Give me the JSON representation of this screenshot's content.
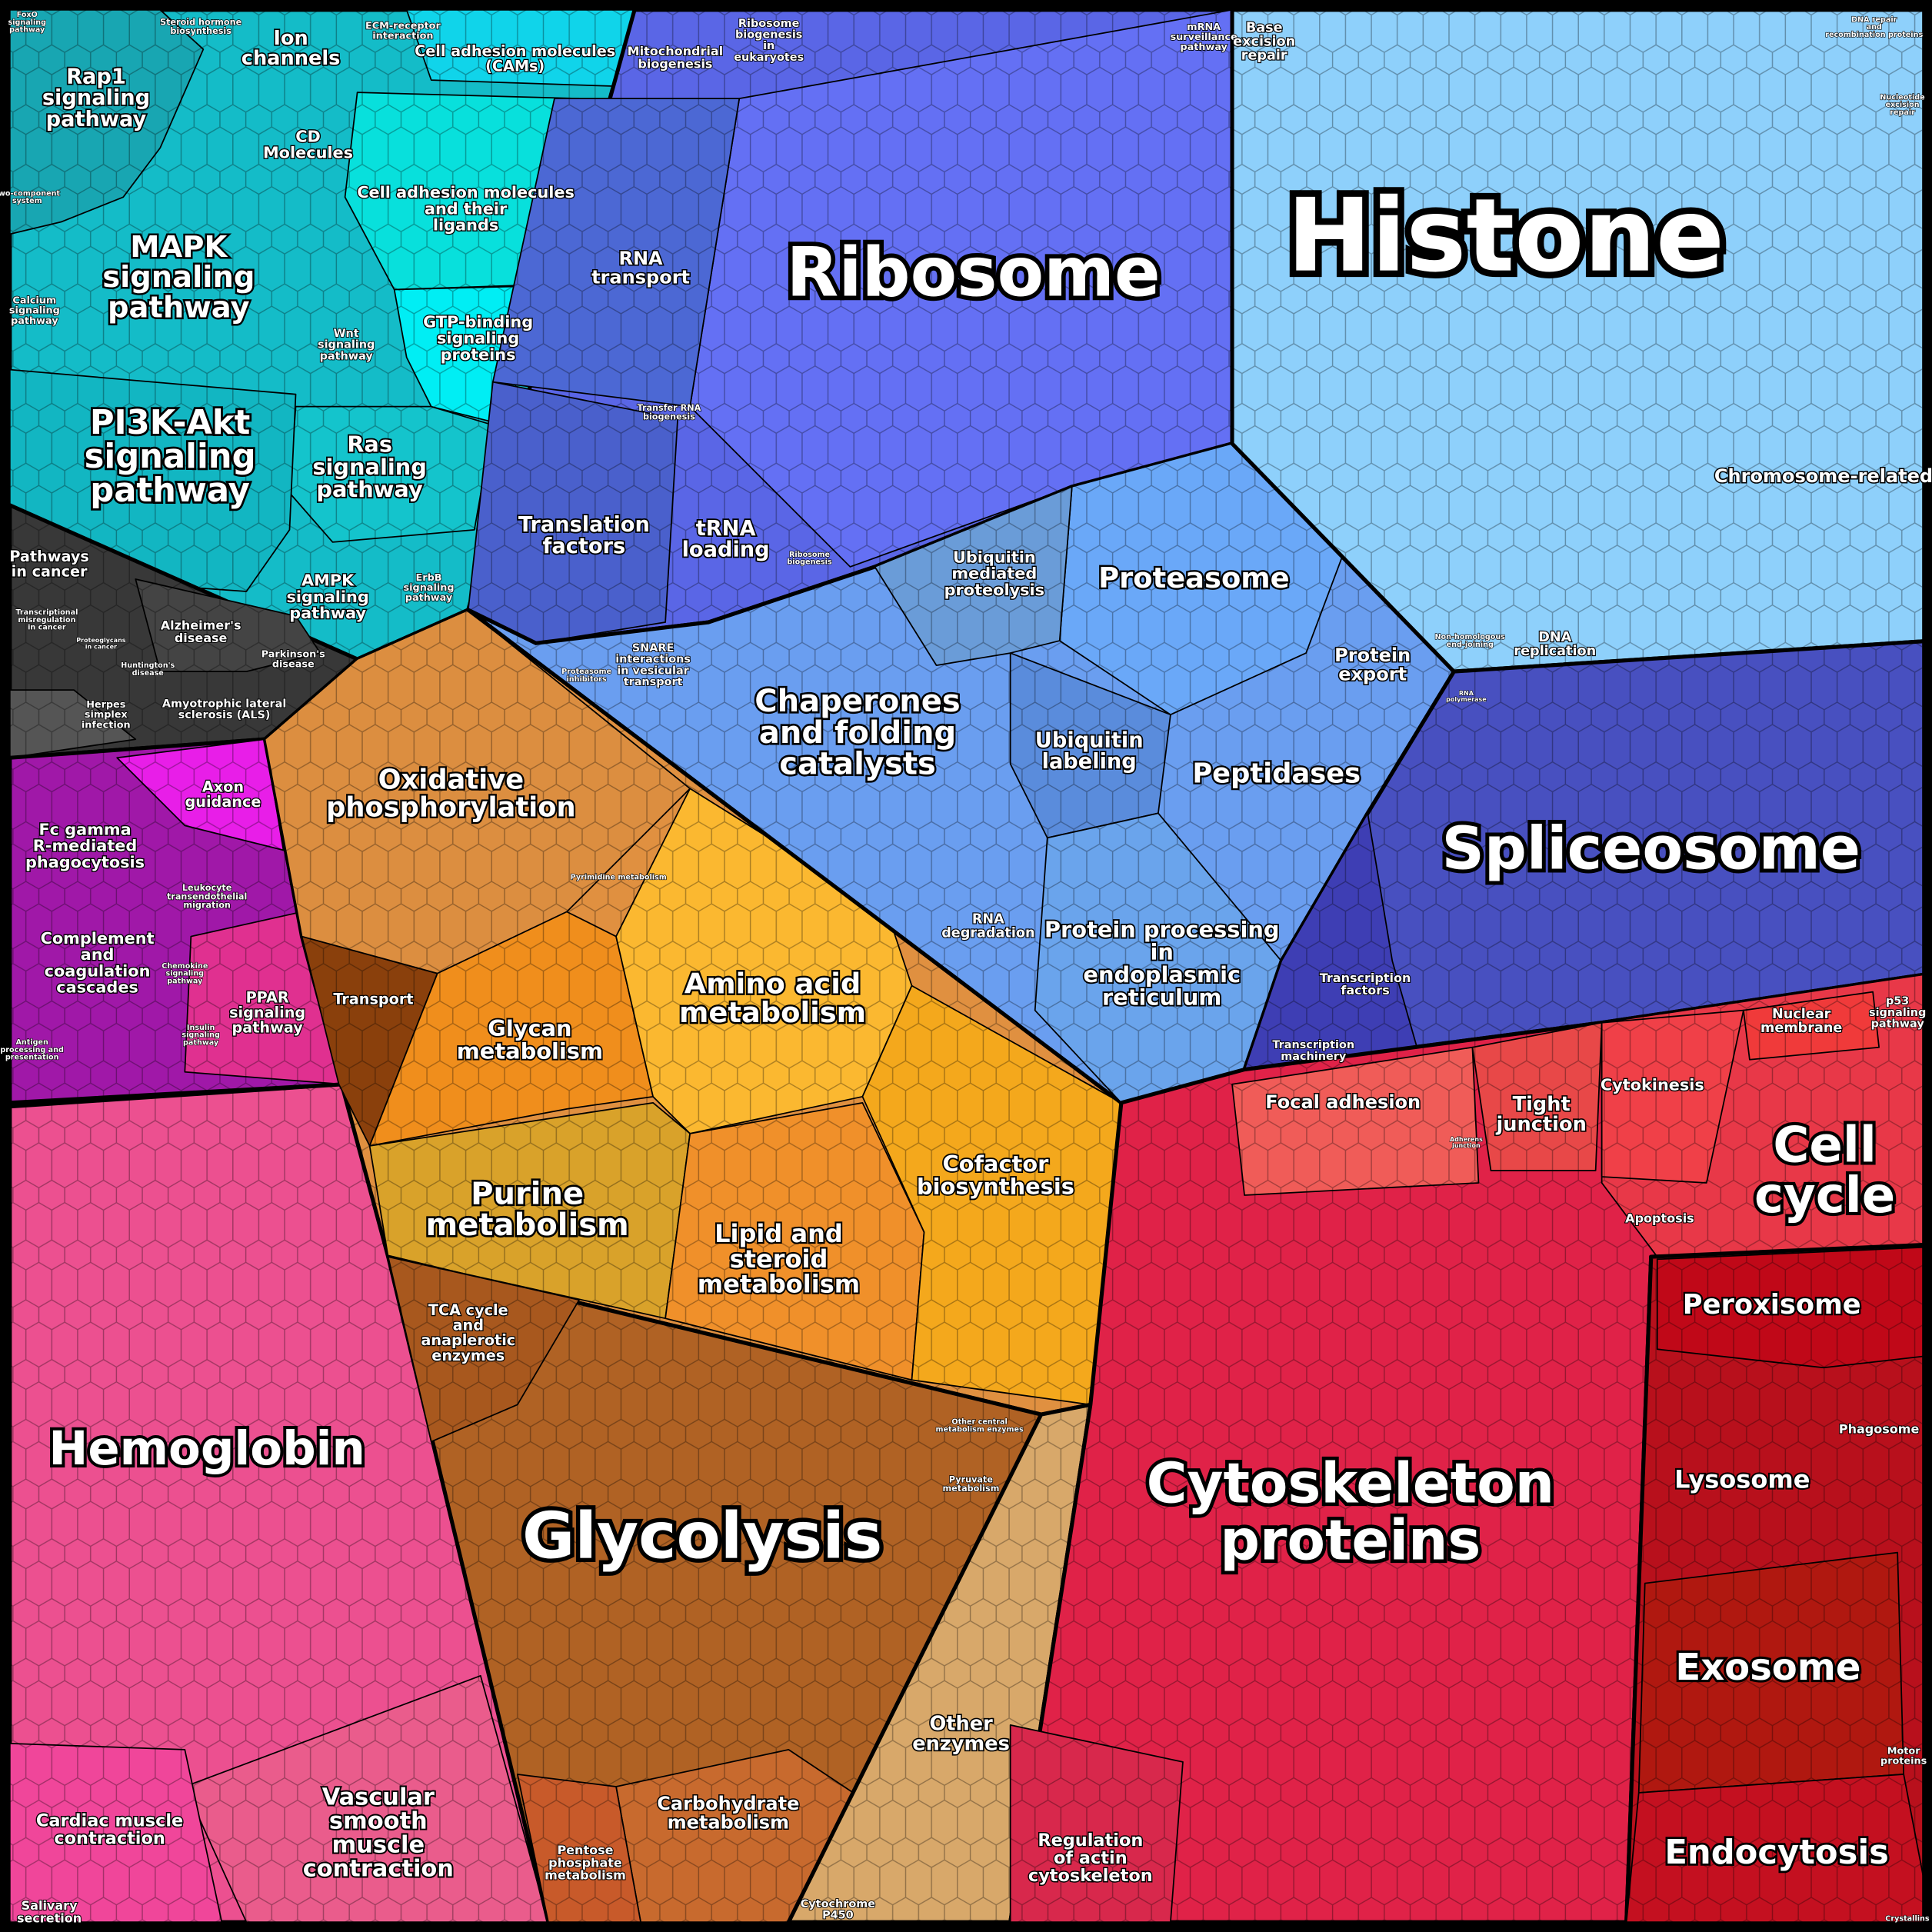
{
  "labels": [
    "FoxO signaling pathway",
    "Steroid hormone biosynthesis",
    "Ion channels",
    "ECM-receptor interaction",
    "Cell adhesion molecules (CAMs)",
    "Rap1 signaling pathway",
    "CD Molecules",
    "Two-component system",
    "Cell adhesion molecules and their ligands",
    "MAPK signaling pathway",
    "Calcium signaling pathway",
    "Wnt signaling pathway",
    "GTP-binding signaling proteins",
    "PI3K-Akt signaling pathway",
    "Ras signaling pathway",
    "AMPK signaling pathway",
    "ErbB signaling pathway",
    "Pathways in cancer",
    "Transcriptional misregulation in cancer",
    "Alzheimer's disease",
    "Proteoglycans in cancer",
    "Huntington's disease",
    "Parkinson's disease",
    "Amyotrophic lateral sclerosis (ALS)",
    "Herpes simplex infection",
    "Axon guidance",
    "Fc gamma R-mediated phagocytosis",
    "Leukocyte transendothelial migration",
    "Complement and coagulation cascades",
    "Chemokine signaling pathway",
    "PPAR signaling pathway",
    "Antigen processing and presentation",
    "Insulin signaling pathway",
    "Hemoglobin",
    "Cardiac muscle contraction",
    "Vascular smooth muscle contraction",
    "Salivary secretion",
    "Oxidative phosphorylation",
    "Transport",
    "Pyrimidine metabolism",
    "Glycan metabolism",
    "Amino acid metabolism",
    "Purine metabolism",
    "Lipid and steroid metabolism",
    "Cofactor biosynthesis",
    "TCA cycle and anaplerotic enzymes",
    "Glycolysis",
    "Other central metabolism enzymes",
    "Pyruvate metabolism",
    "Carbohydrate metabolism",
    "Pentose phosphate metabolism",
    "Other enzymes",
    "Cytochrome P450",
    "Mitochondrial biogenesis",
    "Ribosome biogenesis in eukaryotes",
    "Ribosome",
    "mRNA surveillance pathway",
    "RNA transport",
    "Transfer RNA biogenesis",
    "Translation factors",
    "tRNA loading",
    "Ribosome biogenesis",
    "Ubiquitin mediated proteolysis",
    "Proteasome",
    "Protein export",
    "Proteasome inhibitors",
    "SNARE interactions in vesicular transport",
    "Chaperones and folding catalysts",
    "Ubiquitin labeling",
    "Peptidases",
    "RNA degradation",
    "Protein processing in endoplasmic reticulum",
    "Base excision repair",
    "Histone",
    "DNA repair and recombination proteins",
    "Nucleotide excision repair",
    "Chromosome-related",
    "Non-homologous end-joining",
    "DNA replication",
    "RNA polymerase",
    "Spliceosome",
    "Transcription factors",
    "Transcription machinery",
    "Focal adhesion",
    "Adherens junction",
    "Tight junction",
    "Cytokinesis",
    "Nuclear membrane",
    "p53 signaling pathway",
    "Cell cycle",
    "Apoptosis",
    "Cytoskeleton proteins",
    "Regulation of actin cytoskeleton",
    "Peroxisome",
    "Phagosome",
    "Lysosome",
    "Exosome",
    "Motor proteins",
    "Endocytosis",
    "Crystallins"
  ]
}
